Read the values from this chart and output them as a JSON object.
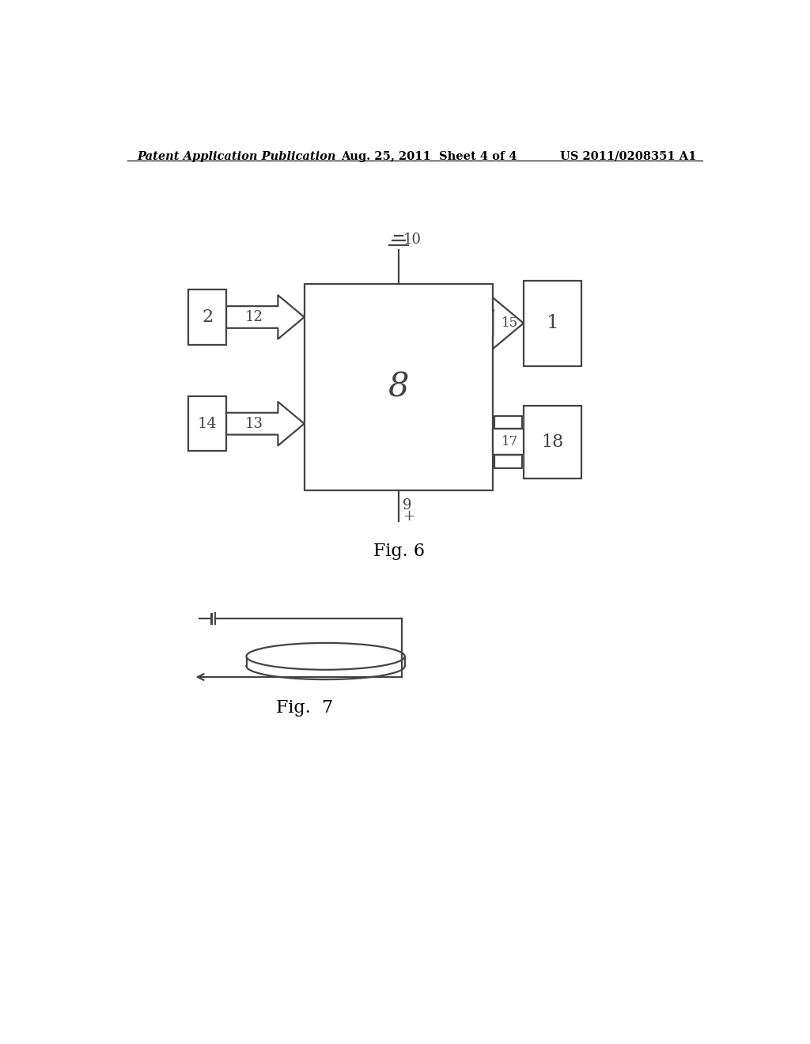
{
  "bg_color": "#ffffff",
  "line_color": "#444444",
  "header_left": "Patent Application Publication",
  "header_center": "Aug. 25, 2011  Sheet 4 of 4",
  "header_right": "US 2011/0208351 A1",
  "fig6_label": "Fig. 6",
  "fig7_label": "Fig.  7"
}
